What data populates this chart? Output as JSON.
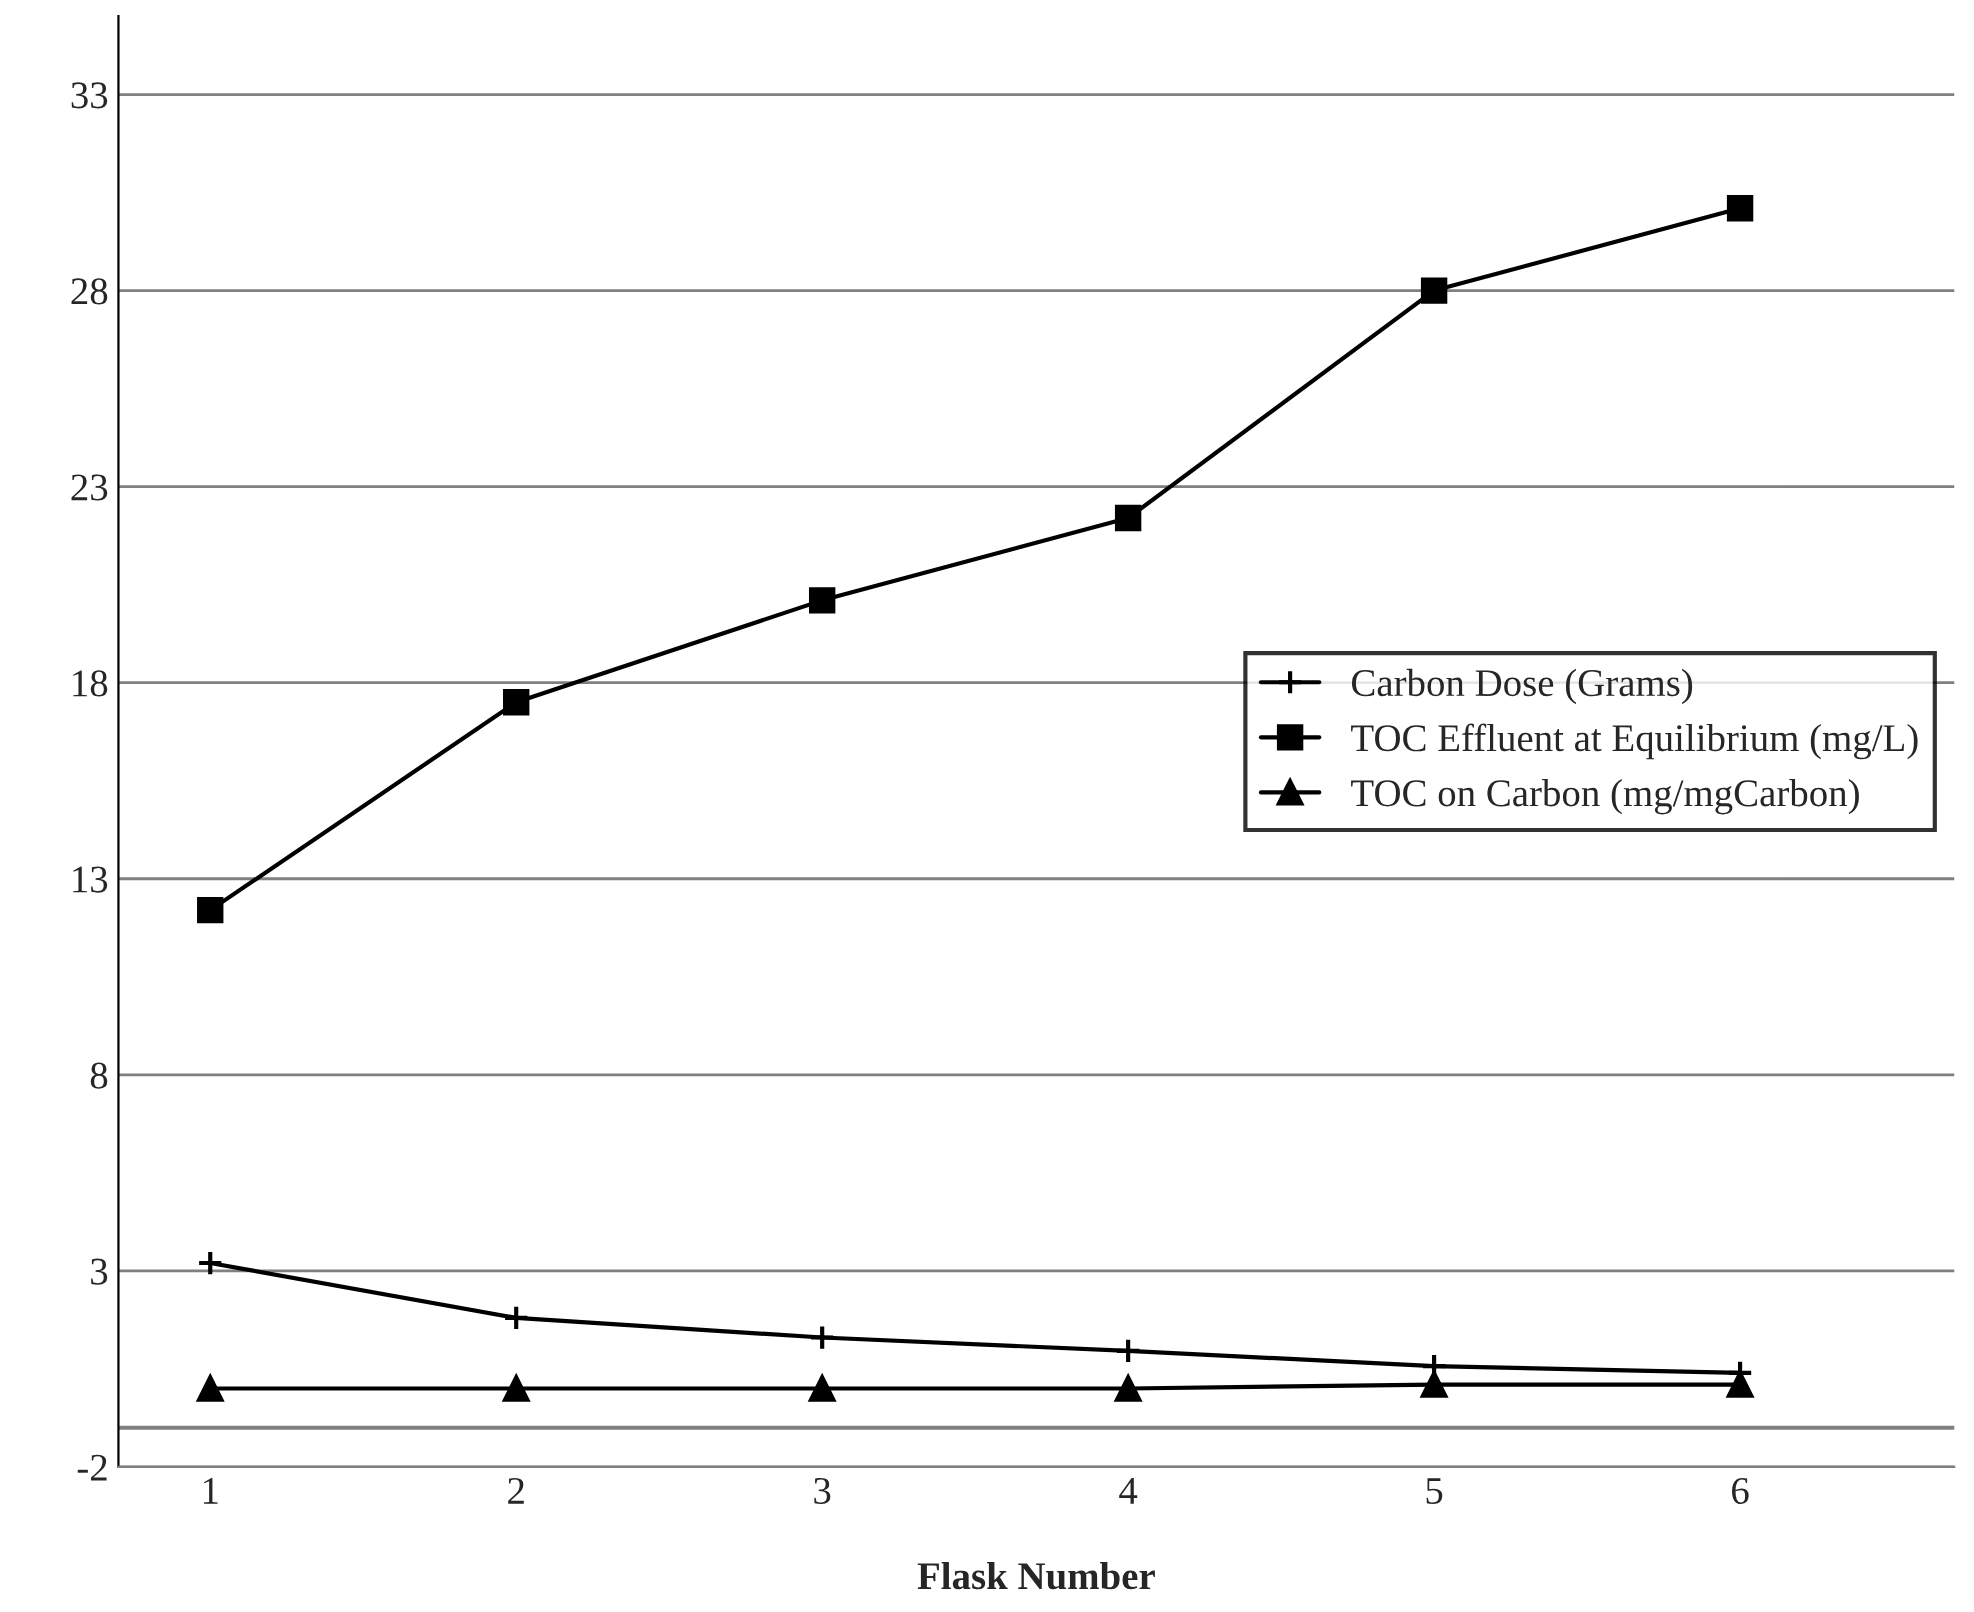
{
  "chart_data": {
    "type": "line",
    "xlabel": "Flask Number",
    "categories": [
      "1",
      "2",
      "3",
      "4",
      "5",
      "6"
    ],
    "series": [
      {
        "name": "Carbon Dose (Grams)",
        "color": "#000000",
        "marker": "cross",
        "values": [
          3.2,
          1.8,
          1.3,
          0.96,
          0.57,
          0.4
        ]
      },
      {
        "name": "TOC Effluent at Equilibrium (mg/L)",
        "color": "#000000",
        "marker": "square",
        "values": [
          12.2,
          17.5,
          20.1,
          22.2,
          28.0,
          30.1
        ]
      },
      {
        "name": "TOC on Carbon (mg/mgCarbon)",
        "color": "#000000",
        "marker": "triangle",
        "values": [
          0.0,
          0.0,
          0.0,
          0.0,
          0.1,
          0.1
        ]
      }
    ],
    "ylim": [
      -2,
      35
    ],
    "yticks": [
      -2,
      3,
      8,
      13,
      18,
      23,
      28,
      33
    ],
    "ref_lines": [
      {
        "axis": "y",
        "value": -1,
        "color": "#808080"
      }
    ],
    "grid": "y",
    "legend": "center right"
  }
}
